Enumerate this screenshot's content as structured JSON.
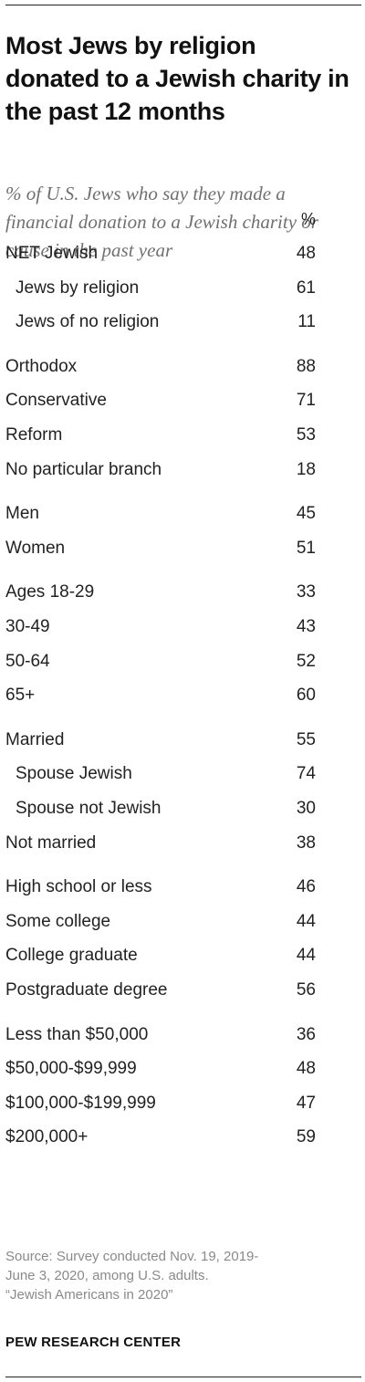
{
  "chart_data": {
    "type": "table",
    "title": "Most Jews by religion donated to a Jewish charity in the past 12 months",
    "subtitle": "% of U.S. Jews who say they made a financial donation to a Jewish charity or cause in the past year",
    "unit_header": "%",
    "rows": [
      {
        "label": "NET Jewish",
        "value": "48",
        "indent": false,
        "group": 0
      },
      {
        "label": "Jews by religion",
        "value": "61",
        "indent": true,
        "group": 0
      },
      {
        "label": "Jews of no religion",
        "value": "11",
        "indent": true,
        "group": 0
      },
      {
        "label": "Orthodox",
        "value": "88",
        "indent": false,
        "group": 1
      },
      {
        "label": "Conservative",
        "value": "71",
        "indent": false,
        "group": 1
      },
      {
        "label": "Reform",
        "value": "53",
        "indent": false,
        "group": 1
      },
      {
        "label": "No particular branch",
        "value": "18",
        "indent": false,
        "group": 1
      },
      {
        "label": "Men",
        "value": "45",
        "indent": false,
        "group": 2
      },
      {
        "label": "Women",
        "value": "51",
        "indent": false,
        "group": 2
      },
      {
        "label": "Ages 18-29",
        "value": "33",
        "indent": false,
        "group": 3
      },
      {
        "label": "30-49",
        "value": "43",
        "indent": false,
        "group": 3
      },
      {
        "label": "50-64",
        "value": "52",
        "indent": false,
        "group": 3
      },
      {
        "label": "65+",
        "value": "60",
        "indent": false,
        "group": 3
      },
      {
        "label": "Married",
        "value": "55",
        "indent": false,
        "group": 4
      },
      {
        "label": "Spouse Jewish",
        "value": "74",
        "indent": true,
        "group": 4
      },
      {
        "label": "Spouse not Jewish",
        "value": "30",
        "indent": true,
        "group": 4
      },
      {
        "label": "Not married",
        "value": "38",
        "indent": false,
        "group": 4
      },
      {
        "label": "High school or less",
        "value": "46",
        "indent": false,
        "group": 5
      },
      {
        "label": "Some college",
        "value": "44",
        "indent": false,
        "group": 5
      },
      {
        "label": "College graduate",
        "value": "44",
        "indent": false,
        "group": 5
      },
      {
        "label": "Postgraduate degree",
        "value": "56",
        "indent": false,
        "group": 5
      },
      {
        "label": "Less than $50,000",
        "value": "36",
        "indent": false,
        "group": 6
      },
      {
        "label": "$50,000-$99,999",
        "value": "48",
        "indent": false,
        "group": 6
      },
      {
        "label": "$100,000-$199,999",
        "value": "47",
        "indent": false,
        "group": 6
      },
      {
        "label": "$200,000+",
        "value": "59",
        "indent": false,
        "group": 6
      }
    ]
  },
  "source": {
    "lines": [
      "Source: Survey conducted Nov. 19, 2019-",
      "June 3, 2020, among U.S. adults.",
      "“Jewish Americans in 2020”"
    ]
  },
  "brand": "PEW RESEARCH CENTER"
}
